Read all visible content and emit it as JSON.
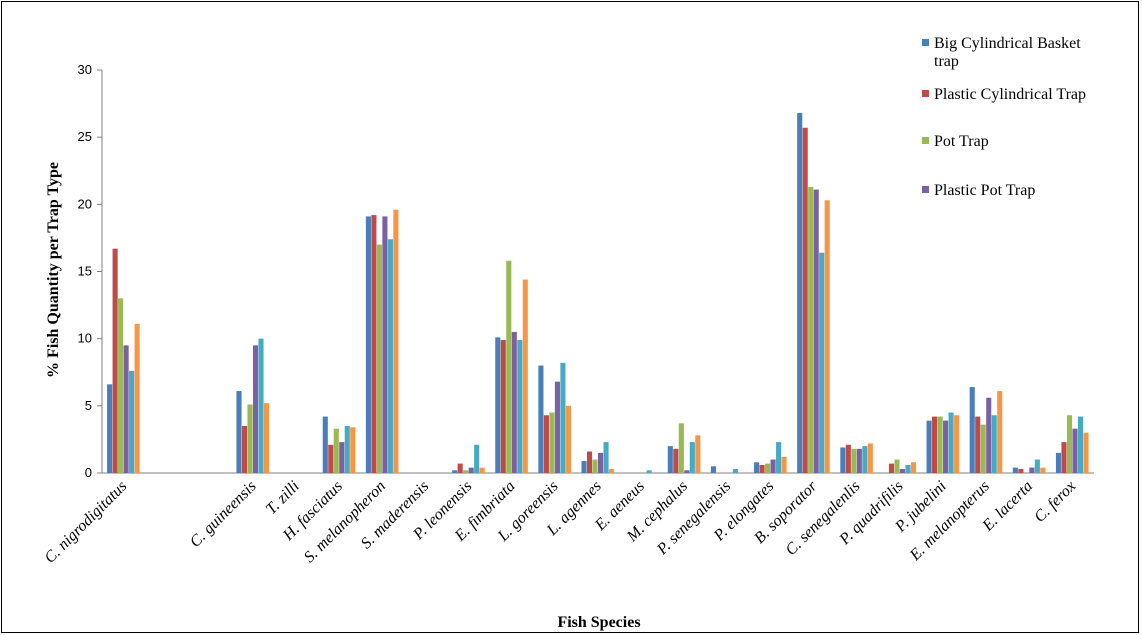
{
  "chart_data": {
    "type": "bar",
    "xlabel": "Fish Species",
    "ylabel": "% Fish Quantity per Trap Type",
    "ylim": [
      0,
      30
    ],
    "yticks": [
      0,
      5,
      10,
      15,
      20,
      25,
      30
    ],
    "grid": false,
    "legend_position": "top-right",
    "categories": [
      "C. nigrodigitatus",
      "",
      "",
      "C. guineensis",
      "T. zilli",
      "H. fasciatus",
      "S. melanopheron",
      "S. maderensis",
      "P. leonensis",
      "E. fimbriata",
      "L. goreensis",
      "L. agennes",
      "E. aeneus",
      "M. cephalus",
      "P. senegalensis",
      "P. elongates",
      "B. soporator",
      "C. senegalenlis",
      "P. quadrifilis",
      "P. jubelini",
      "E. melanopterus",
      "E. lacerta",
      "C. ferox"
    ],
    "series": [
      {
        "name": "Big Cylindrical Basket trap",
        "color": "#4a7ebb",
        "values": [
          6.6,
          0,
          0,
          6.1,
          0,
          4.2,
          19.1,
          0,
          0.2,
          10.1,
          8.0,
          0.9,
          0,
          2.0,
          0.5,
          0.8,
          26.8,
          1.9,
          0,
          3.9,
          6.4,
          0.4,
          1.5
        ]
      },
      {
        "name": "Plastic Cylindrical Trap",
        "color": "#be4b48",
        "values": [
          16.7,
          0,
          0,
          3.5,
          0,
          2.1,
          19.2,
          0,
          0.7,
          9.9,
          4.3,
          1.6,
          0,
          1.8,
          0,
          0.6,
          25.7,
          2.1,
          0.7,
          4.2,
          4.2,
          0.3,
          2.3
        ]
      },
      {
        "name": "Pot Trap",
        "color": "#98b954",
        "values": [
          13.0,
          0,
          0,
          5.1,
          0,
          3.3,
          17.0,
          0,
          0.2,
          15.8,
          4.5,
          1.0,
          0,
          3.7,
          0,
          0.7,
          21.3,
          1.8,
          1.0,
          4.2,
          3.6,
          0,
          4.3
        ]
      },
      {
        "name": "Plastic Pot Trap",
        "color": "#7d60a0",
        "values": [
          9.5,
          0,
          0,
          9.5,
          0,
          2.3,
          19.1,
          0,
          0.4,
          10.5,
          6.8,
          1.5,
          0,
          0.2,
          0,
          1.0,
          21.1,
          1.8,
          0.3,
          3.9,
          5.6,
          0.4,
          3.3
        ]
      },
      {
        "name": "",
        "color": "#46aac5",
        "values": [
          7.6,
          0,
          0,
          10.0,
          0,
          3.5,
          17.4,
          0,
          2.1,
          9.9,
          8.2,
          2.3,
          0.2,
          2.3,
          0.3,
          2.3,
          16.4,
          2.0,
          0.6,
          4.5,
          4.3,
          1.0,
          4.2
        ]
      },
      {
        "name": "",
        "color": "#f79646",
        "values": [
          11.1,
          0,
          0,
          5.2,
          0,
          3.4,
          19.6,
          0,
          0.4,
          14.4,
          5.0,
          0.3,
          0,
          2.8,
          0,
          1.2,
          20.3,
          2.2,
          0.8,
          4.3,
          6.1,
          0.4,
          3.0
        ]
      }
    ]
  }
}
